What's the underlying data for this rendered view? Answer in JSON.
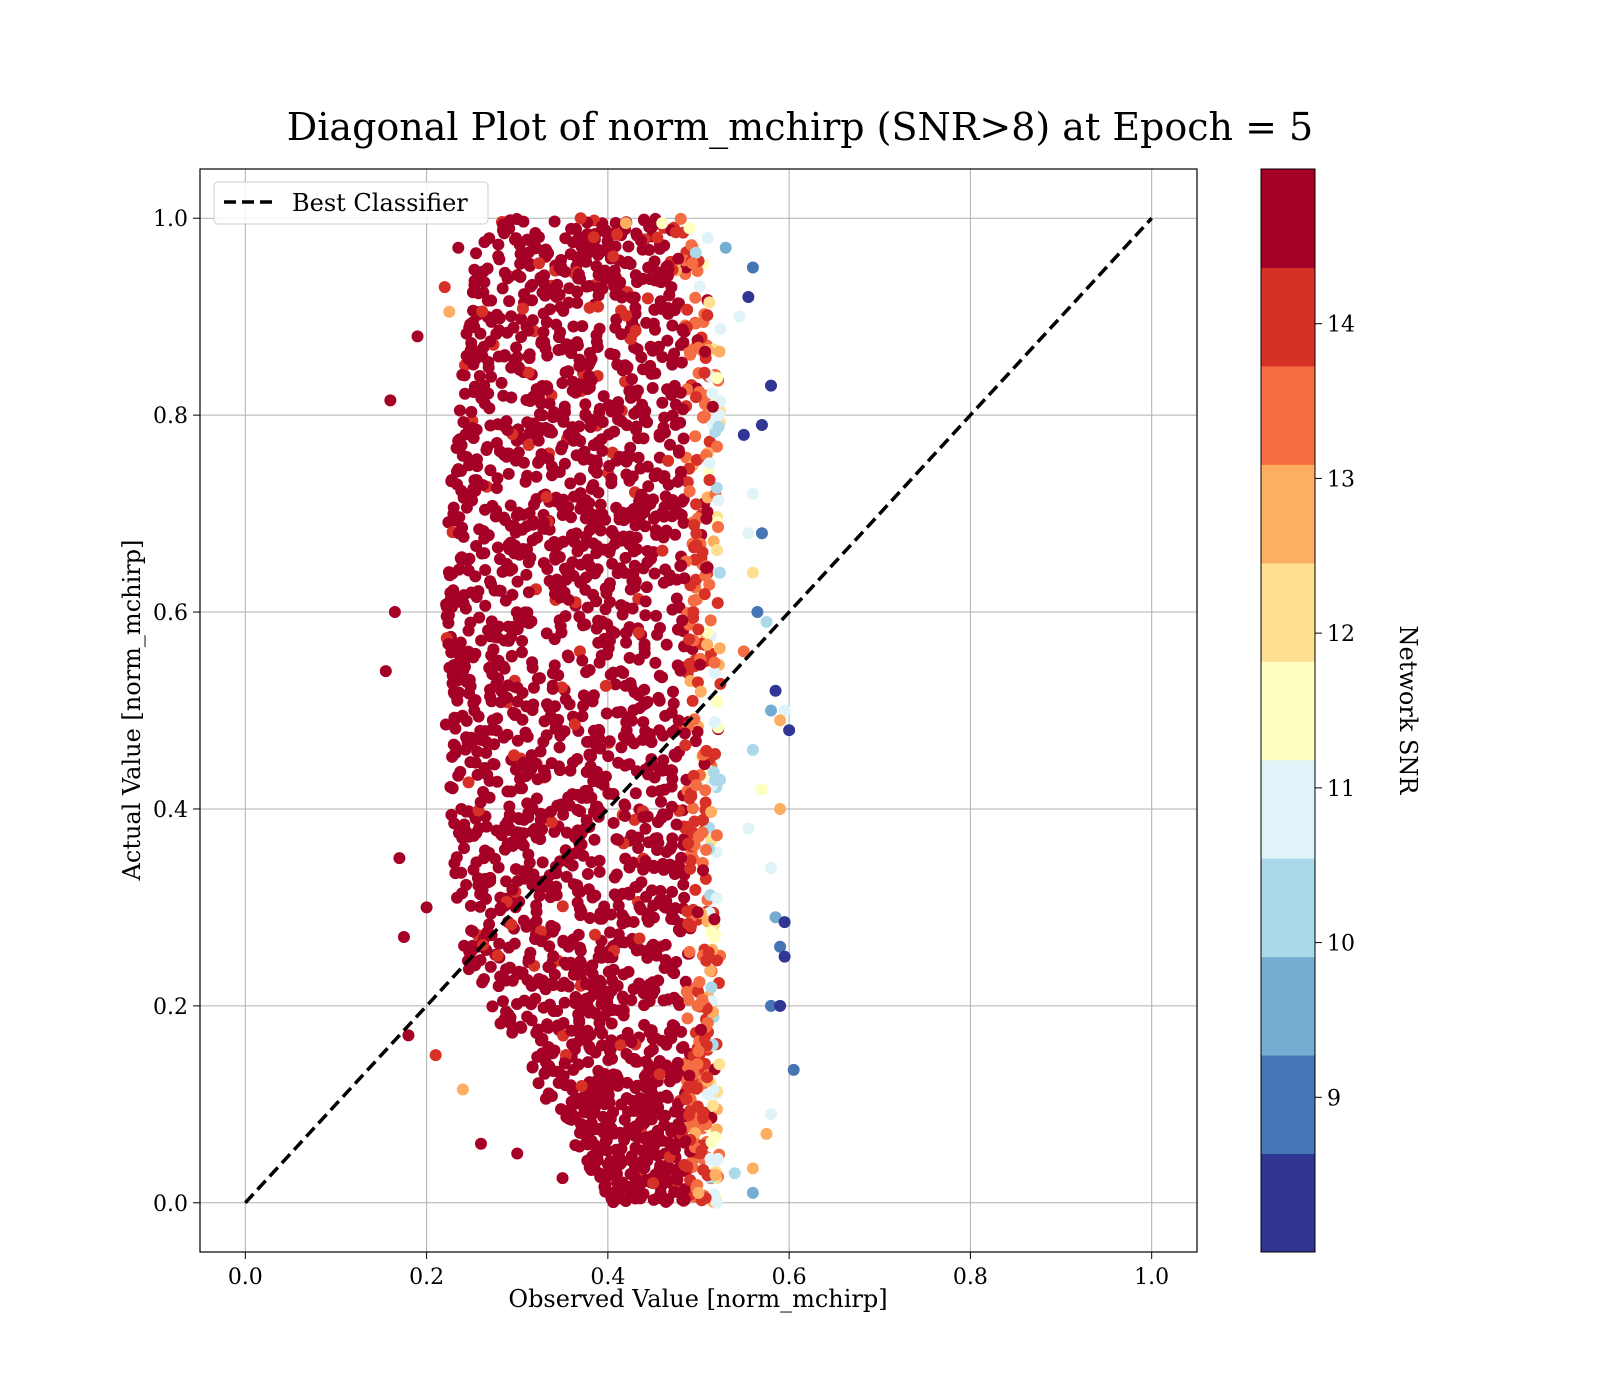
{
  "chart_data": {
    "type": "scatter",
    "title": "Diagonal Plot of norm_mchirp (SNR>8) at Epoch = 5",
    "xlabel": "Observed Value [norm_mchirp]",
    "ylabel": "Actual Value [norm_mchirp]",
    "xlim": [
      -0.05,
      1.05
    ],
    "ylim": [
      -0.05,
      1.05
    ],
    "x_ticks": [
      0.0,
      0.2,
      0.4,
      0.6,
      0.8,
      1.0
    ],
    "y_ticks": [
      0.0,
      0.2,
      0.4,
      0.6,
      0.8,
      1.0
    ],
    "x_tick_labels": [
      "0.0",
      "0.2",
      "0.4",
      "0.6",
      "0.8",
      "1.0"
    ],
    "y_tick_labels": [
      "0.0",
      "0.2",
      "0.4",
      "0.6",
      "0.8",
      "1.0"
    ],
    "grid": true,
    "legend": {
      "position": "top-left",
      "entries": [
        "Best Classifier"
      ]
    },
    "reference_line": {
      "name": "Best Classifier",
      "style": "dashed",
      "color": "#000000",
      "x": [
        0.0,
        1.0
      ],
      "y": [
        0.0,
        1.0
      ]
    },
    "scatter_points": [
      {
        "x": 0.16,
        "y": 0.815,
        "snr": 14.6
      },
      {
        "x": 0.155,
        "y": 0.54,
        "snr": 14.6
      },
      {
        "x": 0.165,
        "y": 0.6,
        "snr": 14.6
      },
      {
        "x": 0.17,
        "y": 0.35,
        "snr": 14.6
      },
      {
        "x": 0.175,
        "y": 0.27,
        "snr": 14.6
      },
      {
        "x": 0.18,
        "y": 0.17,
        "snr": 14.6
      },
      {
        "x": 0.19,
        "y": 0.88,
        "snr": 14.6
      },
      {
        "x": 0.2,
        "y": 0.3,
        "snr": 14.6
      },
      {
        "x": 0.21,
        "y": 0.15,
        "snr": 13.8
      },
      {
        "x": 0.22,
        "y": 0.93,
        "snr": 13.8
      },
      {
        "x": 0.225,
        "y": 0.905,
        "snr": 12.6
      },
      {
        "x": 0.235,
        "y": 0.97,
        "snr": 14.6
      },
      {
        "x": 0.24,
        "y": 0.115,
        "snr": 12.6
      },
      {
        "x": 0.26,
        "y": 0.06,
        "snr": 14.6
      },
      {
        "x": 0.3,
        "y": 0.05,
        "snr": 14.6
      },
      {
        "x": 0.32,
        "y": 0.985,
        "snr": 14.6
      },
      {
        "x": 0.35,
        "y": 0.025,
        "snr": 14.6
      },
      {
        "x": 0.37,
        "y": 1.0,
        "snr": 13.8
      },
      {
        "x": 0.4,
        "y": 0.03,
        "snr": 14.6
      },
      {
        "x": 0.42,
        "y": 0.995,
        "snr": 12.6
      },
      {
        "x": 0.45,
        "y": 0.02,
        "snr": 13.8
      },
      {
        "x": 0.46,
        "y": 0.995,
        "snr": 11.6
      },
      {
        "x": 0.49,
        "y": 0.99,
        "snr": 11.6
      },
      {
        "x": 0.5,
        "y": 0.01,
        "snr": 12.6
      },
      {
        "x": 0.51,
        "y": 0.98,
        "snr": 10.6
      },
      {
        "x": 0.52,
        "y": 0.0,
        "snr": 10.6
      },
      {
        "x": 0.53,
        "y": 0.97,
        "snr": 9.6
      },
      {
        "x": 0.545,
        "y": 0.9,
        "snr": 10.6
      },
      {
        "x": 0.55,
        "y": 0.78,
        "snr": 8.5
      },
      {
        "x": 0.56,
        "y": 0.95,
        "snr": 9.0
      },
      {
        "x": 0.555,
        "y": 0.92,
        "snr": 8.5
      },
      {
        "x": 0.56,
        "y": 0.72,
        "snr": 11.0
      },
      {
        "x": 0.57,
        "y": 0.79,
        "snr": 8.5
      },
      {
        "x": 0.58,
        "y": 0.83,
        "snr": 8.5
      },
      {
        "x": 0.57,
        "y": 0.68,
        "snr": 9.0
      },
      {
        "x": 0.565,
        "y": 0.6,
        "snr": 9.0
      },
      {
        "x": 0.575,
        "y": 0.59,
        "snr": 10.0
      },
      {
        "x": 0.58,
        "y": 0.5,
        "snr": 9.5
      },
      {
        "x": 0.585,
        "y": 0.52,
        "snr": 8.5
      },
      {
        "x": 0.595,
        "y": 0.5,
        "snr": 10.6
      },
      {
        "x": 0.6,
        "y": 0.48,
        "snr": 8.5
      },
      {
        "x": 0.59,
        "y": 0.49,
        "snr": 12.6
      },
      {
        "x": 0.57,
        "y": 0.42,
        "snr": 11.6
      },
      {
        "x": 0.59,
        "y": 0.4,
        "snr": 12.6
      },
      {
        "x": 0.58,
        "y": 0.34,
        "snr": 11.0
      },
      {
        "x": 0.585,
        "y": 0.29,
        "snr": 9.5
      },
      {
        "x": 0.595,
        "y": 0.285,
        "snr": 8.5
      },
      {
        "x": 0.59,
        "y": 0.26,
        "snr": 9.0
      },
      {
        "x": 0.595,
        "y": 0.25,
        "snr": 8.5
      },
      {
        "x": 0.58,
        "y": 0.2,
        "snr": 9.0
      },
      {
        "x": 0.59,
        "y": 0.2,
        "snr": 8.5
      },
      {
        "x": 0.605,
        "y": 0.135,
        "snr": 9.0
      },
      {
        "x": 0.58,
        "y": 0.09,
        "snr": 10.6
      },
      {
        "x": 0.575,
        "y": 0.07,
        "snr": 13.0
      },
      {
        "x": 0.56,
        "y": 0.035,
        "snr": 12.6
      },
      {
        "x": 0.56,
        "y": 0.01,
        "snr": 9.5
      },
      {
        "x": 0.54,
        "y": 0.03,
        "snr": 10.0
      },
      {
        "x": 0.555,
        "y": 0.38,
        "snr": 11.0
      },
      {
        "x": 0.56,
        "y": 0.46,
        "snr": 10.0
      },
      {
        "x": 0.55,
        "y": 0.56,
        "snr": 13.5
      },
      {
        "x": 0.555,
        "y": 0.68,
        "snr": 10.6
      },
      {
        "x": 0.56,
        "y": 0.64,
        "snr": 12.0
      }
    ],
    "dense_cloud": {
      "x_range": [
        0.2,
        0.55
      ],
      "y_range": [
        0.0,
        1.0
      ],
      "dominant_snr": "14+"
    },
    "colorbar": {
      "label": "Network SNR",
      "range": [
        8,
        15
      ],
      "ticks": [
        9,
        10,
        11,
        12,
        13,
        14
      ],
      "tick_labels": [
        "9",
        "10",
        "11",
        "12",
        "13",
        "14"
      ],
      "colors": [
        "#313695",
        "#4575b4",
        "#74add1",
        "#abd9e9",
        "#e0f3f8",
        "#ffffbf",
        "#fee090",
        "#fdae61",
        "#f46d43",
        "#d73027",
        "#a50026"
      ]
    }
  }
}
